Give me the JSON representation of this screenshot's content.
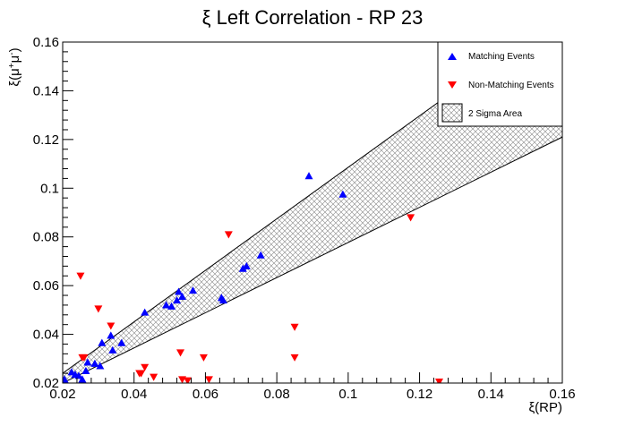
{
  "chart_data": {
    "type": "scatter",
    "title": "ξ Left Correlation - RP 23",
    "xlabel": "ξ(RP)",
    "ylabel": {
      "base": "ξ(μ",
      "sup1": "+",
      "mid": "μ",
      "sup2": "-",
      "end": ")"
    },
    "xlim": [
      0.02,
      0.16
    ],
    "ylim": [
      0.02,
      0.16
    ],
    "xticks": [
      "0.02",
      "0.04",
      "0.06",
      "0.08",
      "0.1",
      "0.12",
      "0.14",
      "0.16"
    ],
    "yticks": [
      "0.02",
      "0.04",
      "0.06",
      "0.08",
      "0.1",
      "0.12",
      "0.14",
      "0.16"
    ],
    "grid": false,
    "legend_position": "top-right",
    "band": {
      "name": "2 Sigma Area",
      "upper": [
        [
          0.02,
          0.024
        ],
        [
          0.16,
          0.172
        ]
      ],
      "lower": [
        [
          0.02,
          0.02
        ],
        [
          0.16,
          0.121
        ]
      ]
    },
    "series": [
      {
        "name": "Matching Events",
        "marker": "triangle-up",
        "color": "#0000ff",
        "points": [
          [
            0.0205,
            0.0215
          ],
          [
            0.0225,
            0.0245
          ],
          [
            0.0235,
            0.0235
          ],
          [
            0.0245,
            0.023
          ],
          [
            0.0255,
            0.0215
          ],
          [
            0.0265,
            0.025
          ],
          [
            0.027,
            0.0285
          ],
          [
            0.029,
            0.028
          ],
          [
            0.0305,
            0.027
          ],
          [
            0.031,
            0.0365
          ],
          [
            0.0335,
            0.0395
          ],
          [
            0.034,
            0.0335
          ],
          [
            0.0365,
            0.0365
          ],
          [
            0.043,
            0.049
          ],
          [
            0.049,
            0.052
          ],
          [
            0.0505,
            0.0515
          ],
          [
            0.052,
            0.054
          ],
          [
            0.0525,
            0.0575
          ],
          [
            0.0535,
            0.0555
          ],
          [
            0.0565,
            0.058
          ],
          [
            0.0645,
            0.055
          ],
          [
            0.065,
            0.054
          ],
          [
            0.0705,
            0.067
          ],
          [
            0.0715,
            0.068
          ],
          [
            0.0755,
            0.0725
          ],
          [
            0.089,
            0.105
          ],
          [
            0.0985,
            0.0975
          ]
        ]
      },
      {
        "name": "Non-Matching Events",
        "marker": "triangle-down",
        "color": "#ff0000",
        "points": [
          [
            0.025,
            0.064
          ],
          [
            0.0255,
            0.0305
          ],
          [
            0.026,
            0.0305
          ],
          [
            0.03,
            0.0505
          ],
          [
            0.0335,
            0.0435
          ],
          [
            0.0415,
            0.024
          ],
          [
            0.042,
            0.024
          ],
          [
            0.043,
            0.0265
          ],
          [
            0.0455,
            0.0225
          ],
          [
            0.053,
            0.0325
          ],
          [
            0.0535,
            0.0215
          ],
          [
            0.055,
            0.021
          ],
          [
            0.0595,
            0.0305
          ],
          [
            0.061,
            0.0215
          ],
          [
            0.0665,
            0.081
          ],
          [
            0.085,
            0.043
          ],
          [
            0.085,
            0.0305
          ],
          [
            0.1175,
            0.088
          ],
          [
            0.1255,
            0.0205
          ]
        ]
      }
    ]
  }
}
